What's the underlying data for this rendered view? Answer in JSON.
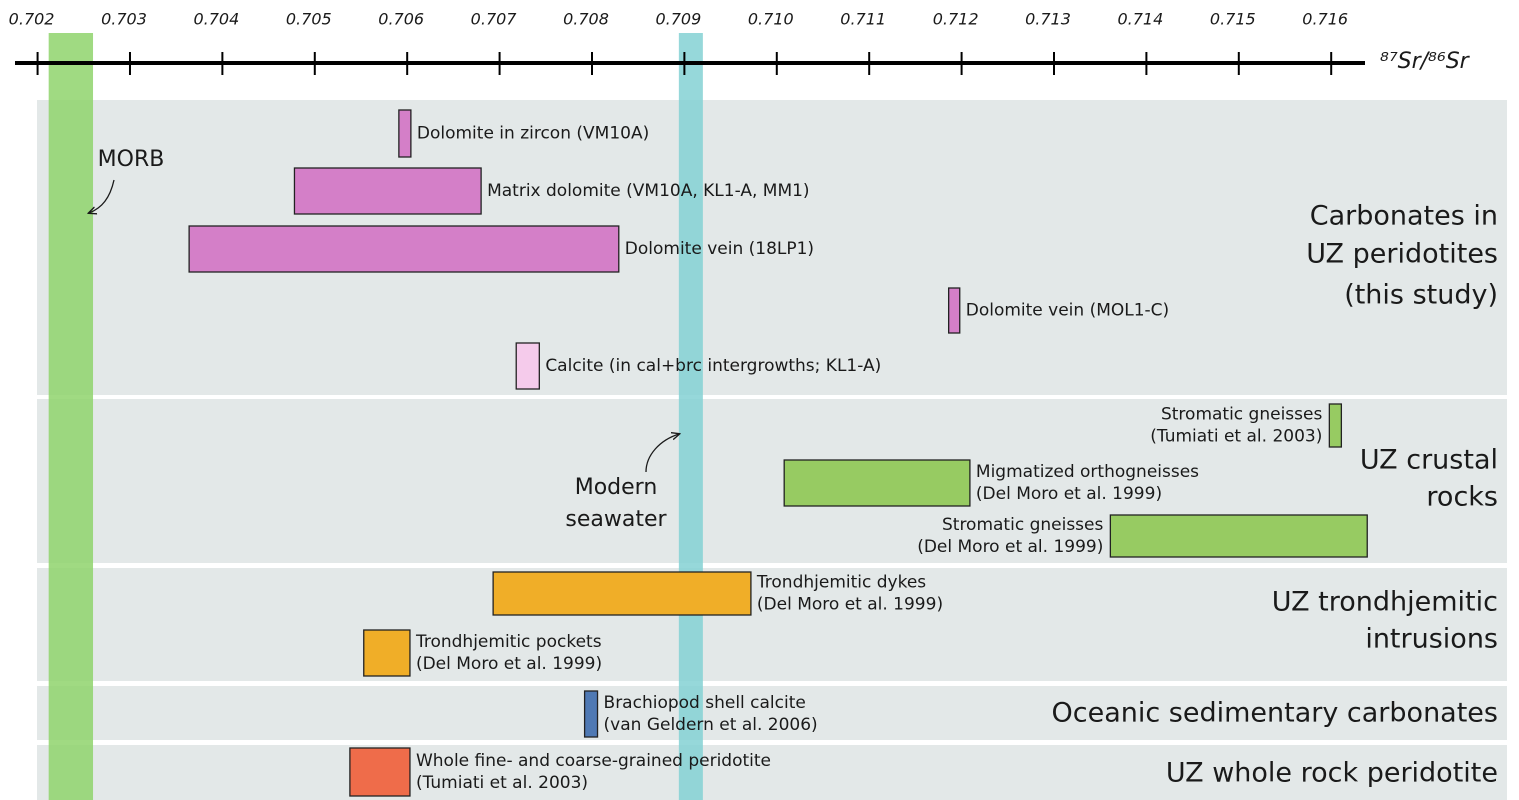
{
  "chart_data": {
    "type": "range-bar",
    "x_label": "⁸⁷Sr/⁸⁶Sr",
    "xlim": [
      0.7018,
      0.7165
    ],
    "xticks": [
      0.702,
      0.703,
      0.704,
      0.705,
      0.706,
      0.707,
      0.708,
      0.709,
      {
        "value": 0.71,
        "label": "0.710"
      },
      0.711,
      0.712,
      0.713,
      0.714,
      0.715,
      0.716
    ],
    "bands": [
      {
        "label": [
          "MORB"
        ],
        "range": [
          0.70212,
          0.7026
        ],
        "color": "#8fd46c"
      },
      {
        "label": [
          "Modern",
          "seawater"
        ],
        "range": [
          0.70894,
          0.7092
        ],
        "color": "#84d1d3"
      }
    ],
    "groups": [
      {
        "label": [
          "Carbonates in",
          "UZ peridotites",
          "(this study)"
        ],
        "bars": [
          {
            "label": [
              "Dolomite in zircon (VM10A)"
            ],
            "range": [
              0.70591,
              0.70604
            ],
            "color": "#d47fc8"
          },
          {
            "label": [
              "Matrix dolomite (VM10A, KL1-A, MM1)"
            ],
            "range": [
              0.70478,
              0.7068
            ],
            "color": "#d47fc8"
          },
          {
            "label": [
              "Dolomite vein (18LP1)"
            ],
            "range": [
              0.70364,
              0.70829
            ],
            "color": "#d47fc8"
          },
          {
            "label": [
              "Dolomite vein (MOL1-C)"
            ],
            "range": [
              0.71186,
              0.71198
            ],
            "color": "#d47fc8"
          },
          {
            "label": [
              "Calcite (in cal+brc intergrowths; KL1-A)"
            ],
            "range": [
              0.70718,
              0.70743
            ],
            "color": "#f5cbeb"
          }
        ]
      },
      {
        "label": [
          "UZ crustal",
          "rocks"
        ],
        "bars": [
          {
            "label": [
              "Stromatic gneisses",
              "(Tumiati et al. 2003)"
            ],
            "range": [
              0.71598,
              0.71611
            ],
            "color": "#97cb62"
          },
          {
            "label": [
              "Migmatized orthogneisses",
              "(Del Moro et al. 1999)"
            ],
            "range": [
              0.71008,
              0.71209
            ],
            "color": "#97cb62"
          },
          {
            "label": [
              "Stromatic gneisses",
              "(Del Moro et al. 1999)"
            ],
            "range": [
              0.71361,
              0.71639
            ],
            "color": "#97cb62"
          }
        ]
      },
      {
        "label": [
          "UZ trondhjemitic",
          "intrusions"
        ],
        "bars": [
          {
            "label": [
              "Trondhjemitic dykes",
              "(Del Moro et al. 1999)"
            ],
            "range": [
              0.70693,
              0.70972
            ],
            "color": "#f0ae28"
          },
          {
            "label": [
              "Trondhjemitic pockets",
              "(Del Moro et al. 1999)"
            ],
            "range": [
              0.70553,
              0.70603
            ],
            "color": "#f0ae28"
          }
        ]
      },
      {
        "label": [
          "Oceanic sedimentary carbonates"
        ],
        "bars": [
          {
            "label": [
              "Brachiopod shell calcite",
              "(van Geldern et al. 2006)"
            ],
            "range": [
              0.70792,
              0.70806
            ],
            "color": "#4f79b4"
          }
        ]
      },
      {
        "label": [
          "UZ whole rock peridotite"
        ],
        "bars": [
          {
            "label": [
              "Whole fine- and coarse-grained peridotite",
              "(Tumiati et al. 2003)"
            ],
            "range": [
              0.70538,
              0.70603
            ],
            "color": "#ef6c4a"
          }
        ]
      }
    ]
  }
}
